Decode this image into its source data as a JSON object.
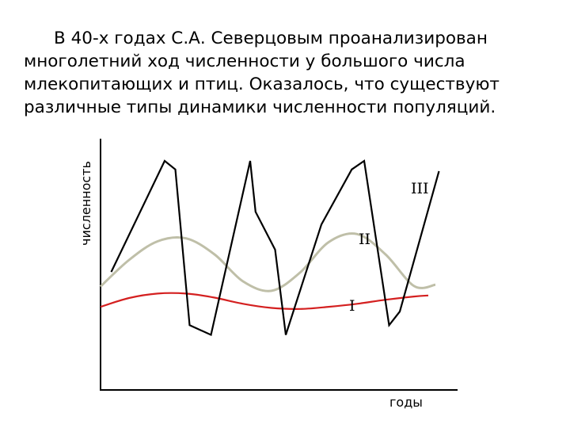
{
  "slide": {
    "text": "В 40-х годах С.А. Северцовым проанализирован многолетний ход численности у большого числа млекопитающих и птиц. Оказалось, что существуют различные типы динамики численности популяций."
  },
  "chart_data": {
    "type": "line",
    "title": "",
    "xlabel": "годы",
    "ylabel": "численность",
    "xlim": [
      0,
      100
    ],
    "ylim": [
      0,
      100
    ],
    "grid": false,
    "legend": "none",
    "series": [
      {
        "name": "I",
        "color": "#d42020",
        "x": [
          0,
          8,
          16,
          24,
          32,
          40,
          48,
          56,
          64,
          72,
          80,
          88,
          92
        ],
        "y": [
          30.7,
          34.8,
          36.9,
          36.9,
          35.0,
          32.1,
          30.2,
          29.7,
          30.7,
          32.1,
          34.0,
          35.5,
          36.0
        ]
      },
      {
        "name": "II",
        "color": "#bfbfa8",
        "x": [
          0,
          8,
          16,
          24,
          32,
          40,
          48,
          56,
          64,
          72,
          80,
          88,
          94
        ],
        "y": [
          40.2,
          52.6,
          61.3,
          62.7,
          55.2,
          42.6,
          38.2,
          46.7,
          60.9,
          64.7,
          55.2,
          40.4,
          41.0
        ]
      },
      {
        "name": "III",
        "color": "#000000",
        "x": [
          3,
          18,
          21,
          25,
          31,
          42,
          43.5,
          49,
          52,
          62,
          70.5,
          74,
          81,
          84,
          95
        ],
        "y": [
          47.0,
          98.9,
          94.9,
          22.1,
          17.6,
          98.9,
          75.1,
          57.4,
          17.6,
          69.2,
          94.9,
          98.9,
          22.1,
          28.5,
          94.1
        ]
      }
    ],
    "labels": {
      "I": "I",
      "II": "II",
      "III": "III"
    }
  }
}
